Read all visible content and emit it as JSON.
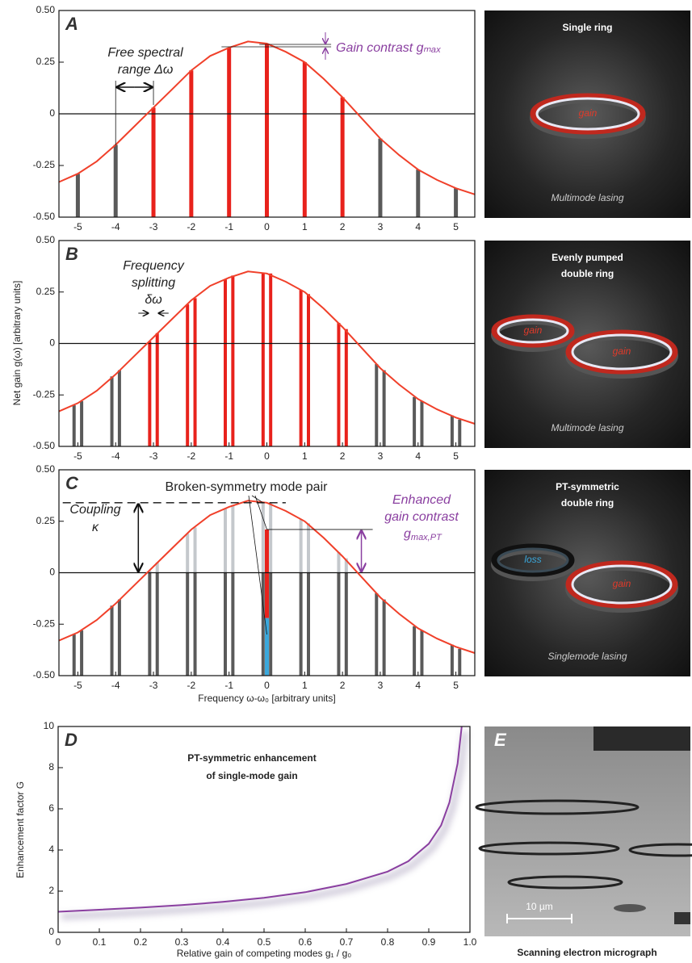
{
  "chart_data": [
    {
      "type": "bar",
      "label": "A",
      "xlim": [
        -5.5,
        5.5
      ],
      "ylim": [
        -0.5,
        0.5
      ],
      "xticks": [
        -5,
        -4,
        -3,
        -2,
        -1,
        0,
        1,
        2,
        3,
        4,
        5
      ],
      "yticks": [
        {
          "value": 0.5,
          "label": "0.50"
        },
        {
          "value": 0.25,
          "label": "0.25"
        },
        0,
        {
          "value": -0.25,
          "label": "-0.25"
        },
        {
          "value": -0.5,
          "label": "-0.50"
        }
      ],
      "x": [
        -5,
        -4,
        -3,
        -2,
        -1,
        0,
        1,
        2,
        3,
        4,
        5
      ],
      "values": [
        -0.29,
        -0.15,
        0.03,
        0.21,
        0.32,
        0.34,
        0.25,
        0.08,
        -0.12,
        -0.27,
        -0.36
      ],
      "color_gain": "#e8221c",
      "color_loss": "#5a5a5a",
      "curve": {
        "color": "#f0402a",
        "x": [
          -5.5,
          -5,
          -4.5,
          -4,
          -3.5,
          -3,
          -2.5,
          -2,
          -1.5,
          -1,
          -0.5,
          0,
          0.5,
          1,
          1.5,
          2,
          2.5,
          3,
          3.5,
          4,
          4.5,
          5,
          5.5
        ],
        "y": [
          -0.33,
          -0.29,
          -0.23,
          -0.15,
          -0.06,
          0.03,
          0.12,
          0.21,
          0.28,
          0.32,
          0.35,
          0.34,
          0.3,
          0.25,
          0.17,
          0.08,
          -0.02,
          -0.12,
          -0.2,
          -0.27,
          -0.32,
          -0.36,
          -0.39
        ]
      },
      "annotations": [
        "Free spectral",
        "range Δω",
        "Gain contrast gₘₐₓ"
      ]
    },
    {
      "type": "bar",
      "label": "B",
      "xlim": [
        -5.5,
        5.5
      ],
      "ylim": [
        -0.5,
        0.5
      ],
      "xticks": [
        -5,
        -4,
        -3,
        -2,
        -1,
        0,
        1,
        2,
        3,
        4,
        5
      ],
      "yticks": [
        {
          "value": 0.5,
          "label": "0.50"
        },
        {
          "value": 0.25,
          "label": "0.25"
        },
        0,
        {
          "value": -0.25,
          "label": "-0.25"
        },
        {
          "value": -0.5,
          "label": "-0.50"
        }
      ],
      "x": [
        -5.1,
        -4.9,
        -4.1,
        -3.9,
        -3.1,
        -2.9,
        -2.1,
        -1.9,
        -1.1,
        -0.9,
        -0.1,
        0.1,
        0.9,
        1.1,
        1.9,
        2.1,
        2.9,
        3.1,
        3.9,
        4.1,
        4.9,
        5.1
      ],
      "values": [
        -0.3,
        -0.28,
        -0.16,
        -0.13,
        0.01,
        0.05,
        0.19,
        0.22,
        0.31,
        0.33,
        0.34,
        0.34,
        0.26,
        0.24,
        0.1,
        0.07,
        -0.1,
        -0.13,
        -0.26,
        -0.28,
        -0.35,
        -0.37
      ],
      "color_gain": "#e8221c",
      "color_loss": "#5a5a5a",
      "curve": {
        "color": "#f0402a",
        "x": [
          -5.5,
          -5,
          -4.5,
          -4,
          -3.5,
          -3,
          -2.5,
          -2,
          -1.5,
          -1,
          -0.5,
          0,
          0.5,
          1,
          1.5,
          2,
          2.5,
          3,
          3.5,
          4,
          4.5,
          5,
          5.5
        ],
        "y": [
          -0.33,
          -0.29,
          -0.23,
          -0.15,
          -0.06,
          0.03,
          0.12,
          0.21,
          0.28,
          0.32,
          0.35,
          0.34,
          0.3,
          0.25,
          0.17,
          0.08,
          -0.02,
          -0.12,
          -0.2,
          -0.27,
          -0.32,
          -0.36,
          -0.39
        ]
      },
      "y_label": "Net gain g(ω) [arbitrary units]",
      "annotations": [
        "Frequency",
        "splitting",
        "δω"
      ]
    },
    {
      "type": "bar",
      "label": "C",
      "xlim": [
        -5.5,
        5.5
      ],
      "ylim": [
        -0.5,
        0.5
      ],
      "xticks": [
        -5,
        -4,
        -3,
        -2,
        -1,
        0,
        1,
        2,
        3,
        4,
        5
      ],
      "yticks": [
        {
          "value": 0.5,
          "label": "0.50"
        },
        {
          "value": 0.25,
          "label": "0.25"
        },
        0,
        {
          "value": -0.25,
          "label": "-0.25"
        },
        {
          "value": -0.5,
          "label": "-0.50"
        }
      ],
      "x": [
        -5.1,
        -4.9,
        -4.1,
        -3.9,
        -3.1,
        -2.9,
        -2.1,
        -1.9,
        -1.1,
        -0.9,
        -0.1,
        0.1,
        0.9,
        1.1,
        1.9,
        2.1,
        2.9,
        3.1,
        3.9,
        4.1,
        4.9,
        5.1
      ],
      "values": [
        -0.3,
        -0.28,
        -0.16,
        -0.13,
        0.01,
        0.05,
        0.19,
        0.22,
        0.31,
        0.33,
        0.34,
        0.34,
        0.26,
        0.24,
        0.1,
        0.07,
        -0.1,
        -0.13,
        -0.26,
        -0.28,
        -0.35,
        -0.37
      ],
      "color_loss": "#5a5a5a",
      "color_above": "#c4c8cc",
      "mode_pair": {
        "x": 0,
        "loss": -0.22,
        "gain": 0.21,
        "loss_color": "#3aa8dc",
        "gain_color": "#e8221c"
      },
      "curve": {
        "color": "#f0402a",
        "x": [
          -5.5,
          -5,
          -4.5,
          -4,
          -3.5,
          -3,
          -2.5,
          -2,
          -1.5,
          -1,
          -0.5,
          0,
          0.5,
          1,
          1.5,
          2,
          2.5,
          3,
          3.5,
          4,
          4.5,
          5,
          5.5
        ],
        "y": [
          -0.33,
          -0.29,
          -0.23,
          -0.15,
          -0.06,
          0.03,
          0.12,
          0.21,
          0.28,
          0.32,
          0.35,
          0.34,
          0.3,
          0.25,
          0.17,
          0.08,
          -0.02,
          -0.12,
          -0.2,
          -0.27,
          -0.32,
          -0.36,
          -0.39
        ]
      },
      "x_label": "Frequency ω-ω₀ [arbitrary units]",
      "annotations": [
        "Broken-symmetry mode pair",
        "Coupling",
        "κ",
        "Enhanced",
        "gain contrast",
        "g",
        "max,PT"
      ]
    },
    {
      "type": "line",
      "label": "D",
      "title": [
        "PT-symmetric enhancement",
        "of single-mode gain"
      ],
      "x_label": "Relative gain of competing modes g₁ / g₀",
      "y_label": "Enhancement factor G",
      "xlim": [
        0,
        1
      ],
      "ylim": [
        0,
        10
      ],
      "xticks": [
        0,
        0.1,
        0.2,
        0.3,
        0.4,
        0.5,
        0.6,
        0.7,
        0.8,
        0.9,
        {
          "value": 1,
          "label": "1.0"
        }
      ],
      "yticks": [
        0,
        2,
        4,
        6,
        8,
        10
      ],
      "color": "#8a3fa0",
      "x": [
        0,
        0.1,
        0.2,
        0.3,
        0.4,
        0.5,
        0.6,
        0.7,
        0.8,
        0.85,
        0.9,
        0.93,
        0.95,
        0.97,
        0.98
      ],
      "values": [
        1.0,
        1.1,
        1.2,
        1.32,
        1.48,
        1.68,
        1.95,
        2.35,
        2.95,
        3.45,
        4.3,
        5.2,
        6.3,
        8.2,
        10
      ]
    }
  ],
  "images": [
    {
      "title": [
        "Single ring"
      ],
      "labels": [
        "gain"
      ],
      "caption": "Multimode lasing"
    },
    {
      "title": [
        "Evenly pumped",
        "double ring"
      ],
      "labels": [
        "gain",
        "gain"
      ],
      "caption": "Multimode lasing"
    },
    {
      "title": [
        "PT-symmetric",
        "double ring"
      ],
      "labels": [
        "loss",
        "gain"
      ],
      "caption": "Singlemode lasing"
    },
    {
      "label": "E",
      "scale": "10 µm",
      "caption": "Scanning electron micrograph"
    }
  ]
}
